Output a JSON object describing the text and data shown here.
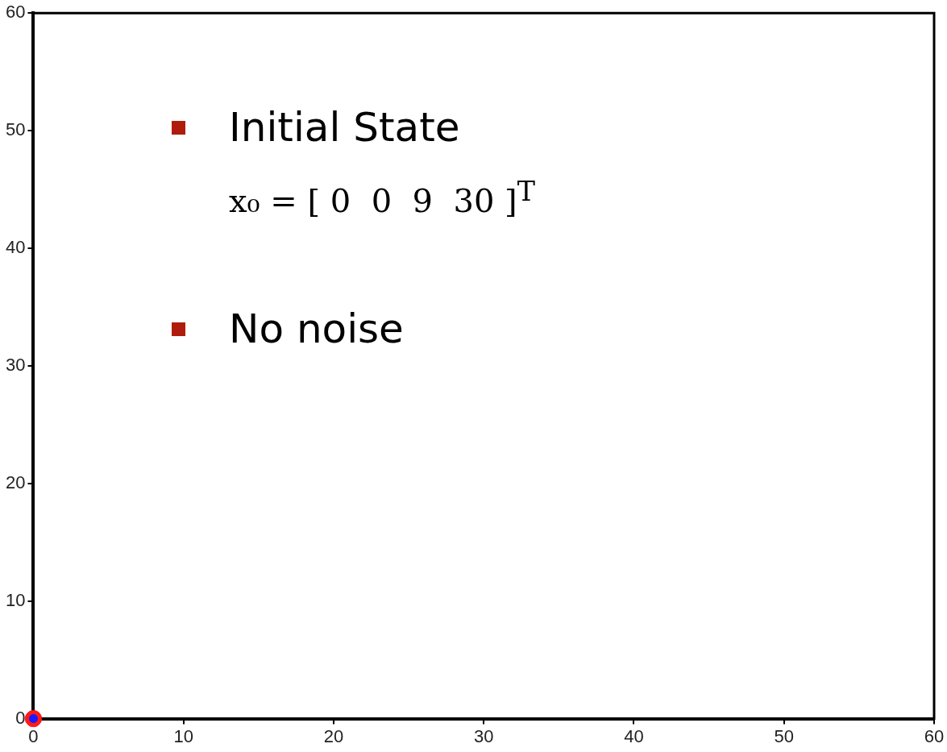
{
  "chart_data": {
    "type": "scatter",
    "series": [
      {
        "color": "#ff1a1a",
        "values": [
          0
        ],
        "x": [
          0
        ]
      },
      {
        "color": "#1a1aff",
        "values": [
          0
        ],
        "x": [
          0
        ]
      }
    ],
    "xlim": [
      0,
      60
    ],
    "ylim": [
      0,
      60
    ],
    "xticks": [
      0,
      10,
      20,
      30,
      40,
      50,
      60
    ],
    "yticks": [
      0,
      10,
      20,
      30,
      40,
      50,
      60
    ],
    "marker": "circle",
    "grid": false,
    "legend": false,
    "annotations": [
      "Initial State",
      "x₀ = [ 0  0  9  30 ]$^{T}$",
      "No noise"
    ]
  }
}
